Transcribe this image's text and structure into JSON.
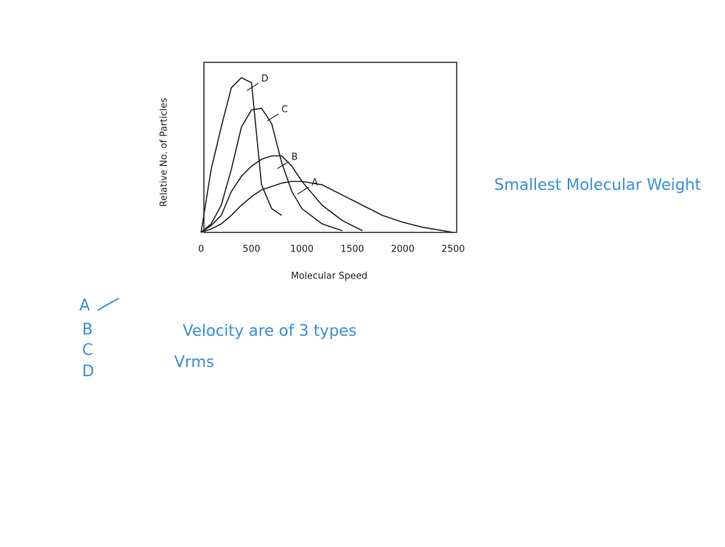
{
  "chart_data": {
    "type": "line",
    "x_label": "Molecular Speed",
    "y_label": "Relative No. of Particles",
    "x": [
      0,
      100,
      200,
      300,
      400,
      500,
      600,
      700,
      800,
      900,
      1000,
      1200,
      1400,
      1600,
      1800,
      2000,
      2200,
      2400,
      2500
    ],
    "series": [
      {
        "name": "D",
        "color": "#222222",
        "values": [
          0,
          37,
          62,
          85,
          91,
          88,
          28,
          14,
          10,
          null,
          null,
          null,
          null,
          null,
          null,
          null,
          null,
          null,
          null
        ]
      },
      {
        "name": "C",
        "color": "#222222",
        "values": [
          0,
          5,
          16,
          37,
          62,
          72,
          73,
          64,
          41,
          24,
          14,
          5,
          1,
          null,
          null,
          null,
          null,
          null,
          null
        ]
      },
      {
        "name": "B",
        "color": "#222222",
        "values": [
          0,
          4,
          10,
          24,
          33,
          39,
          43,
          45,
          45,
          39,
          30,
          16,
          7,
          1,
          null,
          null,
          null,
          null,
          null
        ]
      },
      {
        "name": "A",
        "color": "#222222",
        "values": [
          0,
          2,
          5,
          10,
          16,
          21,
          25,
          27,
          29,
          30,
          30,
          28,
          22,
          16,
          10,
          6,
          3,
          1,
          0
        ]
      }
    ],
    "xlim": [
      0,
      2500
    ],
    "xticks": [
      0,
      500,
      1000,
      1500,
      2000,
      2500
    ],
    "ylim": [
      0,
      100
    ],
    "grid": false
  },
  "notes": {
    "side_remark": "Smallest Molecular Weight",
    "options": [
      "A",
      "B",
      "C",
      "D"
    ],
    "velocity_remark": "Velocity are of 3 types",
    "vrms": "Vrms"
  }
}
